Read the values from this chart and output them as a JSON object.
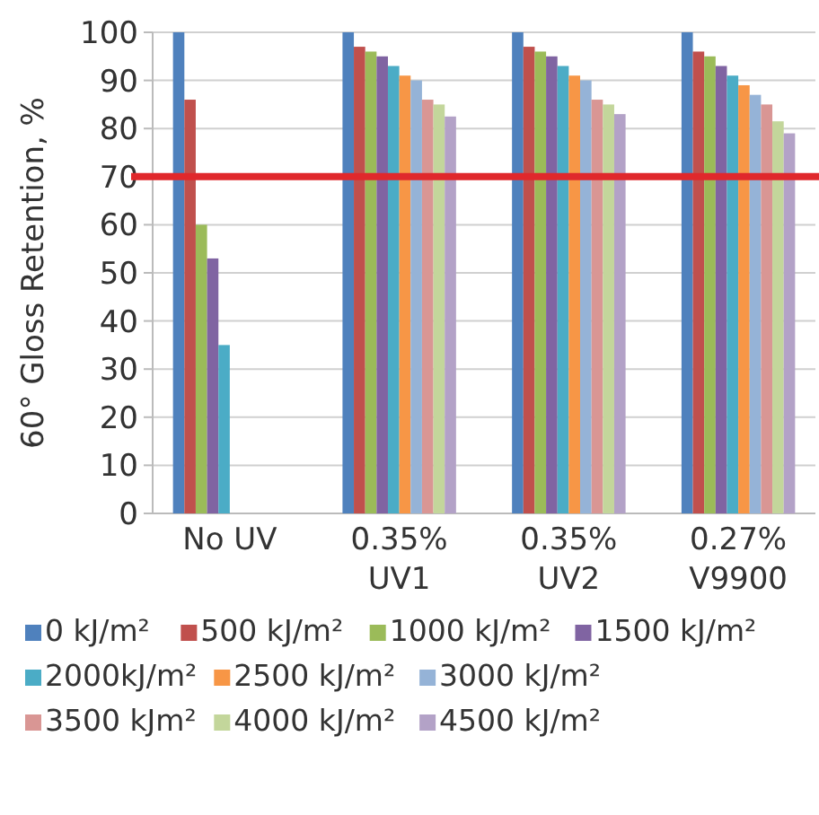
{
  "chart_data": {
    "type": "bar",
    "ylabel": "60° Gloss Retention, %",
    "categories": [
      "No UV",
      "0.35%\nUV1",
      "0.35%\nUV2",
      "0.27%\nV9900"
    ],
    "series": [
      {
        "name": "0 kJ/m²",
        "color": "#4f81bd",
        "values": [
          100,
          100,
          100,
          100
        ]
      },
      {
        "name": "500 kJ/m²",
        "color": "#c0504d",
        "values": [
          86,
          97,
          97,
          96
        ]
      },
      {
        "name": "1000 kJ/m²",
        "color": "#9bbb59",
        "values": [
          60,
          96,
          96,
          95
        ]
      },
      {
        "name": "1500 kJ/m²",
        "color": "#8064a2",
        "values": [
          53,
          95,
          95,
          93
        ]
      },
      {
        "name": "2000kJ/m²",
        "color": "#4bacc6",
        "values": [
          35,
          93,
          93,
          91
        ]
      },
      {
        "name": "2500 kJ/m²",
        "color": "#f79646",
        "values": [
          null,
          91,
          91,
          89
        ]
      },
      {
        "name": "3000 kJ/m²",
        "color": "#95b3d7",
        "values": [
          null,
          90,
          90,
          87
        ]
      },
      {
        "name": "3500 kJm²",
        "color": "#d99694",
        "values": [
          null,
          86,
          86,
          85
        ]
      },
      {
        "name": "4000 kJ/m²",
        "color": "#c3d69b",
        "values": [
          null,
          85,
          85,
          81.5
        ]
      },
      {
        "name": "4500 kJ/m²",
        "color": "#b3a2c7",
        "values": [
          null,
          82.5,
          83,
          79
        ]
      }
    ],
    "ylim": [
      0,
      100
    ],
    "yticks": [
      0,
      10,
      20,
      30,
      40,
      50,
      60,
      70,
      80,
      90,
      100
    ],
    "grid": "y",
    "legend": "bottom",
    "ref_lines": [
      {
        "axis": "y",
        "value": 70,
        "color": "#e0282c"
      }
    ]
  }
}
